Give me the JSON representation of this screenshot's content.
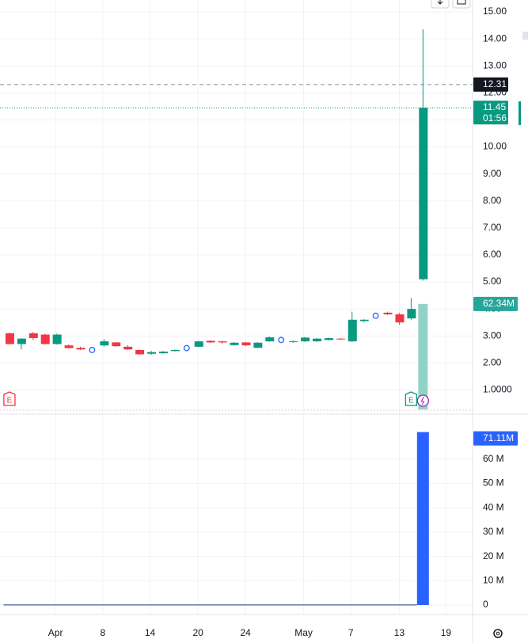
{
  "chart_data": {
    "type": "candlestick",
    "up_color": "#089981",
    "down_color": "#f23645",
    "ylim": [
      0.28,
      15.44
    ],
    "yticks": [
      {
        "value": 15,
        "label": "15.00"
      },
      {
        "value": 14,
        "label": "14.00"
      },
      {
        "value": 13,
        "label": "13.00"
      },
      {
        "value": 12,
        "label": "12.00"
      },
      {
        "value": 11,
        "label": "11.00"
      },
      {
        "value": 10,
        "label": "10.00"
      },
      {
        "value": 9,
        "label": "9.00"
      },
      {
        "value": 8,
        "label": "8.00"
      },
      {
        "value": 7,
        "label": "7.00"
      },
      {
        "value": 6,
        "label": "6.00"
      },
      {
        "value": 5,
        "label": "5.00"
      },
      {
        "value": 4,
        "label": "4.00"
      },
      {
        "value": 3,
        "label": "3.00"
      },
      {
        "value": 2,
        "label": "2.00"
      },
      {
        "value": 1,
        "label": "1.0000"
      }
    ],
    "xlim": [
      -0.8,
      39.2
    ],
    "xticks": [
      {
        "value": 3.9,
        "label": "Apr"
      },
      {
        "value": 7.9,
        "label": "8"
      },
      {
        "value": 11.9,
        "label": "14"
      },
      {
        "value": 15.96,
        "label": "20"
      },
      {
        "value": 19.98,
        "label": "24"
      },
      {
        "value": 24.9,
        "label": "May"
      },
      {
        "value": 28.9,
        "label": "7"
      },
      {
        "value": 33,
        "label": "13"
      },
      {
        "value": 36.95,
        "label": "19"
      }
    ],
    "grid": true,
    "candles": [
      {
        "x": 0,
        "open": 3.1,
        "high": 3.12,
        "low": 2.68,
        "close": 2.7
      },
      {
        "x": 1,
        "open": 2.7,
        "high": 2.92,
        "low": 2.5,
        "close": 2.9
      },
      {
        "x": 2,
        "open": 3.1,
        "high": 3.15,
        "low": 2.85,
        "close": 2.92
      },
      {
        "x": 3,
        "open": 3.05,
        "high": 3.08,
        "low": 2.68,
        "close": 2.7
      },
      {
        "x": 4,
        "open": 2.7,
        "high": 3.08,
        "low": 2.68,
        "close": 3.05
      },
      {
        "x": 5,
        "open": 2.65,
        "high": 2.68,
        "low": 2.53,
        "close": 2.55
      },
      {
        "x": 6,
        "open": 2.56,
        "high": 2.6,
        "low": 2.48,
        "close": 2.5
      },
      {
        "x": 8,
        "open": 2.65,
        "high": 2.88,
        "low": 2.6,
        "close": 2.8
      },
      {
        "x": 9,
        "open": 2.76,
        "high": 2.78,
        "low": 2.6,
        "close": 2.62
      },
      {
        "x": 10,
        "open": 2.6,
        "high": 2.66,
        "low": 2.48,
        "close": 2.5
      },
      {
        "x": 11,
        "open": 2.48,
        "high": 2.5,
        "low": 2.3,
        "close": 2.32
      },
      {
        "x": 12,
        "open": 2.34,
        "high": 2.45,
        "low": 2.3,
        "close": 2.4
      },
      {
        "x": 13,
        "open": 2.36,
        "high": 2.44,
        "low": 2.34,
        "close": 2.42
      },
      {
        "x": 14,
        "open": 2.44,
        "high": 2.5,
        "low": 2.43,
        "close": 2.48
      },
      {
        "x": 16,
        "open": 2.6,
        "high": 2.82,
        "low": 2.58,
        "close": 2.8
      },
      {
        "x": 17,
        "open": 2.82,
        "high": 2.84,
        "low": 2.74,
        "close": 2.76
      },
      {
        "x": 18,
        "open": 2.8,
        "high": 2.82,
        "low": 2.7,
        "close": 2.76
      },
      {
        "x": 19,
        "open": 2.66,
        "high": 2.77,
        "low": 2.64,
        "close": 2.75
      },
      {
        "x": 20,
        "open": 2.76,
        "high": 2.78,
        "low": 2.63,
        "close": 2.65
      },
      {
        "x": 21,
        "open": 2.56,
        "high": 2.77,
        "low": 2.55,
        "close": 2.75
      },
      {
        "x": 22,
        "open": 2.8,
        "high": 2.98,
        "low": 2.78,
        "close": 2.95
      },
      {
        "x": 24,
        "open": 2.77,
        "high": 2.84,
        "low": 2.75,
        "close": 2.8
      },
      {
        "x": 25,
        "open": 2.8,
        "high": 2.96,
        "low": 2.78,
        "close": 2.94
      },
      {
        "x": 26,
        "open": 2.8,
        "high": 2.92,
        "low": 2.78,
        "close": 2.9
      },
      {
        "x": 27,
        "open": 2.85,
        "high": 2.94,
        "low": 2.84,
        "close": 2.92
      },
      {
        "x": 28,
        "open": 2.9,
        "high": 2.92,
        "low": 2.86,
        "close": 2.88
      },
      {
        "x": 29,
        "open": 2.8,
        "high": 3.9,
        "low": 2.78,
        "close": 3.6
      },
      {
        "x": 30,
        "open": 3.55,
        "high": 3.62,
        "low": 3.5,
        "close": 3.6
      },
      {
        "x": 32,
        "open": 3.86,
        "high": 3.9,
        "low": 3.78,
        "close": 3.8
      },
      {
        "x": 33,
        "open": 3.8,
        "high": 3.85,
        "low": 3.42,
        "close": 3.5
      },
      {
        "x": 34,
        "open": 3.65,
        "high": 4.4,
        "low": 3.6,
        "close": 4.0
      },
      {
        "x": 35,
        "open": 5.1,
        "high": 14.35,
        "low": 5.05,
        "close": 11.45
      }
    ],
    "markers": [
      {
        "x": 7,
        "value": 2.48
      },
      {
        "x": 15,
        "value": 2.55
      },
      {
        "x": 23,
        "value": 2.85
      },
      {
        "x": 31,
        "value": 3.75
      }
    ],
    "price_lines": [
      {
        "value": 12.31,
        "color": "#131722",
        "style": "dashed"
      },
      {
        "value": 11.45,
        "color": "#089981",
        "style": "dotted",
        "countdown": "01:56"
      }
    ],
    "overlay_volume": {
      "x": 35,
      "value": 62.34,
      "value_label": "62.34M",
      "ylim": [
        0,
        242
      ],
      "color": "#8fd3c6"
    },
    "volume": {
      "color": "#2962ff",
      "ylim": [
        -3.58,
        76.2
      ],
      "yticks": [
        0,
        {
          "value": 10,
          "label": "10 M"
        },
        {
          "value": 20,
          "label": "20 M"
        },
        {
          "value": 30,
          "label": "30 M"
        },
        {
          "value": 40,
          "label": "40 M"
        },
        {
          "value": 50,
          "label": "50 M"
        },
        {
          "value": 60,
          "label": "60 M"
        }
      ],
      "values": [
        0.2,
        0.2,
        0.2,
        0.2,
        0.2,
        0.2,
        0.2,
        0.2,
        0.2,
        0.2,
        0.2,
        0.2,
        0.2,
        0.2,
        0.2,
        0.2,
        0.2,
        0.2,
        0.2,
        0.2,
        0.2,
        0.2,
        0.2,
        0.2,
        0.2,
        0.2,
        0.2,
        0.2,
        0.2,
        0.2,
        0.2,
        0.2,
        0.2,
        0.2,
        0.2,
        71.11
      ],
      "last_label": "71.11M"
    },
    "events": [
      {
        "x": 0,
        "label": "E"
      },
      {
        "x": 34,
        "label": "E"
      }
    ]
  }
}
